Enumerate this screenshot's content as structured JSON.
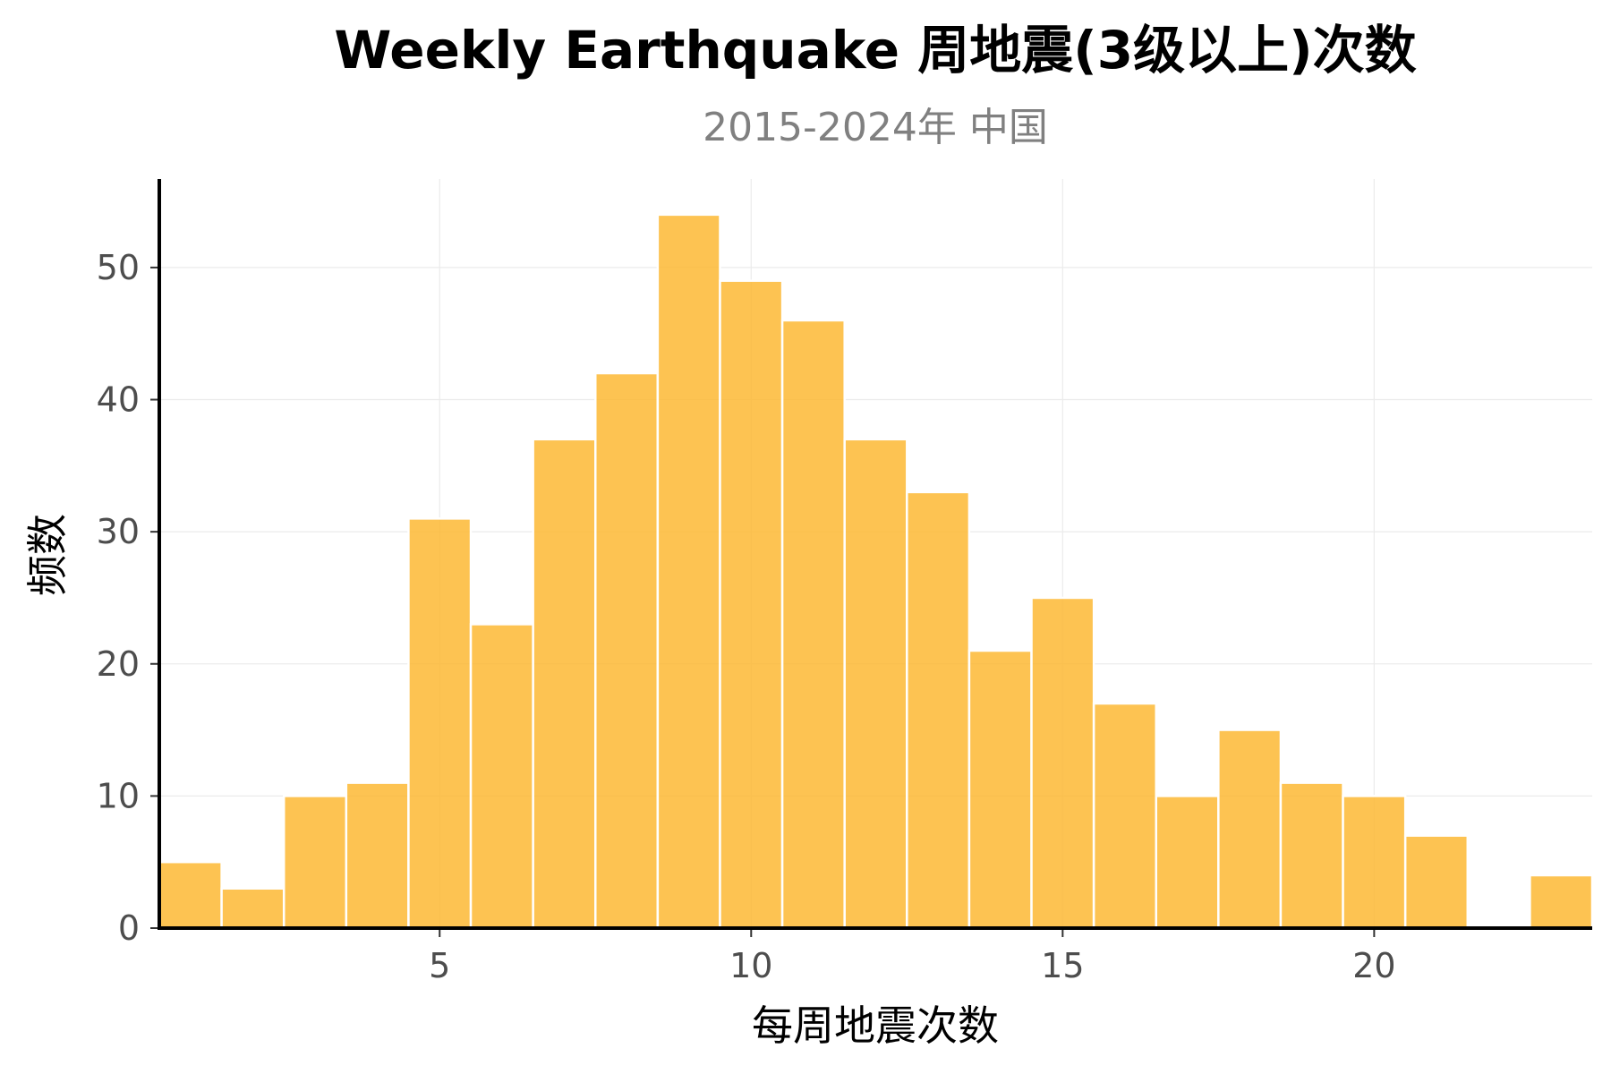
{
  "chart_data": {
    "type": "bar",
    "title": "Weekly Earthquake 周地震(3级以上)次数",
    "subtitle": "2015-2024年 中国",
    "xlabel": "每周地震次数",
    "ylabel": "频数",
    "x": [
      1,
      2,
      3,
      4,
      5,
      6,
      7,
      8,
      9,
      10,
      11,
      12,
      13,
      14,
      15,
      16,
      17,
      18,
      19,
      20,
      21,
      22,
      23
    ],
    "values": [
      5,
      3,
      10,
      11,
      31,
      23,
      37,
      42,
      54,
      49,
      46,
      37,
      33,
      21,
      25,
      17,
      10,
      15,
      11,
      10,
      7,
      0,
      4
    ],
    "xlim": [
      0.5,
      23.5
    ],
    "ylim": [
      0,
      56.7
    ],
    "xticks": [
      5,
      10,
      15,
      20
    ],
    "yticks": [
      0,
      10,
      20,
      30,
      40,
      50
    ],
    "grid": true,
    "legend": "none",
    "bar_color": "#FDB934",
    "bar_edge_color": "#ffffff",
    "grid_color": "#ebebeb"
  }
}
